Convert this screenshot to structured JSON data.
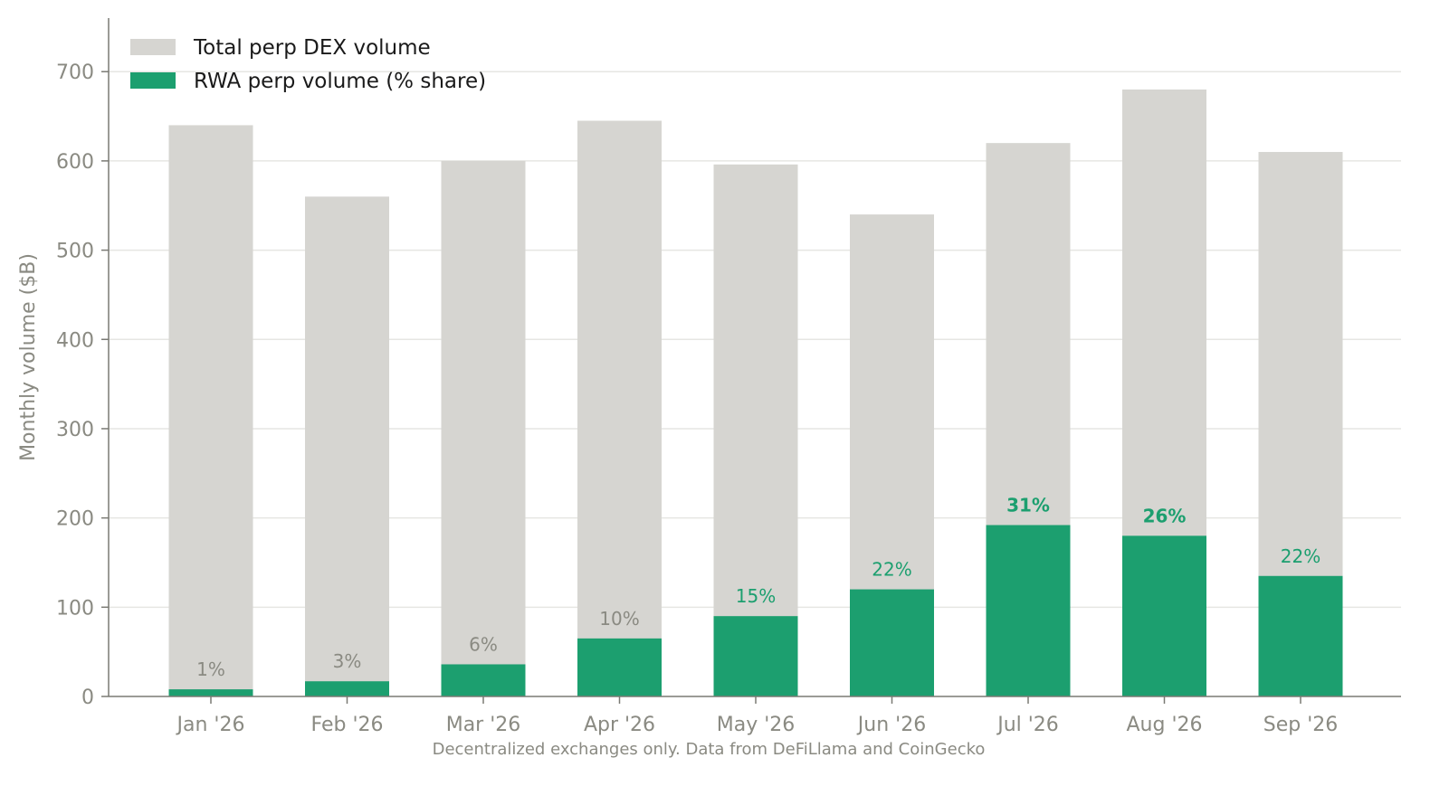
{
  "chart_data": {
    "type": "bar",
    "subtype": "overlapping",
    "categories": [
      "Jan '26",
      "Feb '26",
      "Mar '26",
      "Apr '26",
      "May '26",
      "Jun '26",
      "Jul '26",
      "Aug '26",
      "Sep '26"
    ],
    "series": [
      {
        "name": "Total perp DEX volume",
        "values": [
          640,
          560,
          600,
          645,
          596,
          540,
          620,
          680,
          610
        ],
        "color": "#d6d5d1"
      },
      {
        "name": "RWA perp volume (% share)",
        "values": [
          8,
          17,
          36,
          65,
          90,
          120,
          192,
          180,
          135
        ],
        "color": "#1c9f6f"
      }
    ],
    "share_labels": [
      "1%",
      "3%",
      "6%",
      "10%",
      "15%",
      "22%",
      "31%",
      "26%",
      "22%"
    ],
    "share_label_colors": [
      "#8a8a82",
      "#8a8a82",
      "#8a8a82",
      "#8a8a82",
      "#1c9f6f",
      "#1c9f6f",
      "#1c9f6f",
      "#1c9f6f",
      "#1c9f6f"
    ],
    "share_label_bold": [
      false,
      false,
      false,
      false,
      false,
      false,
      true,
      true,
      false
    ],
    "ylabel": "Monthly volume ($B)",
    "xlabel": "",
    "ylim": [
      0,
      760
    ],
    "yticks": [
      0,
      100,
      200,
      300,
      400,
      500,
      600,
      700
    ],
    "grid": "horizontal",
    "legend_position": "top-left",
    "footnote": "Decentralized exchanges only. Data from DeFiLlama and CoinGecko"
  }
}
